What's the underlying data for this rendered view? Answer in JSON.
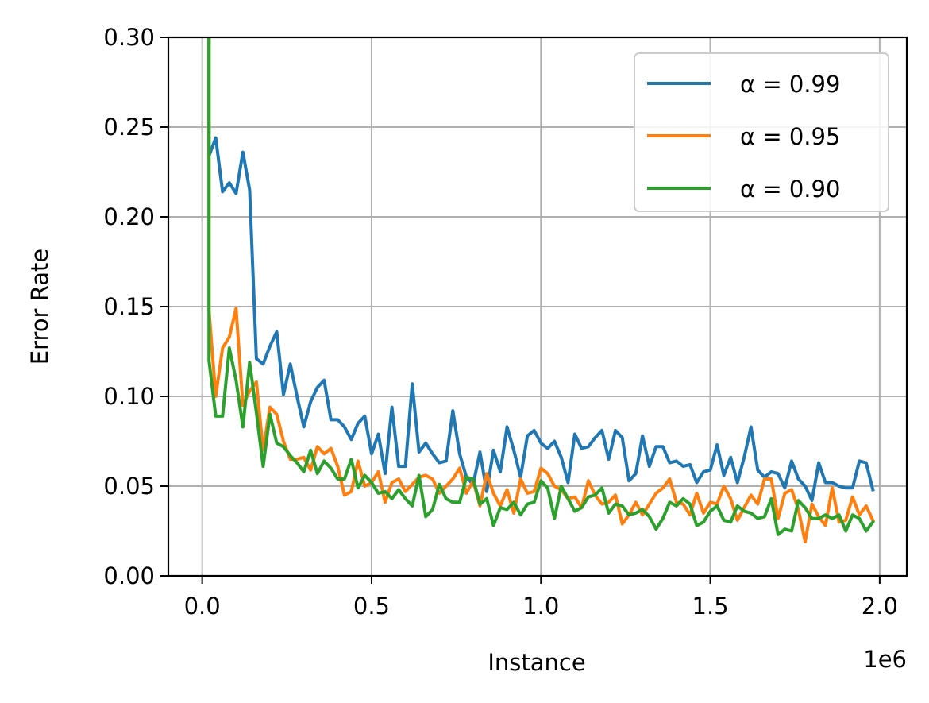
{
  "chart_data": {
    "type": "line",
    "xlabel": "Instance",
    "ylabel": "Error Rate",
    "x_offset_label": "1e6",
    "xlim": [
      -0.1,
      2.08
    ],
    "ylim": [
      0,
      0.3
    ],
    "xticks": [
      0.0,
      0.5,
      1.0,
      1.5,
      2.0
    ],
    "xtick_labels": [
      "0.0",
      "0.5",
      "1.0",
      "1.5",
      "2.0"
    ],
    "yticks": [
      0.0,
      0.05,
      0.1,
      0.15,
      0.2,
      0.25,
      0.3
    ],
    "ytick_labels": [
      "0.00",
      "0.05",
      "0.10",
      "0.15",
      "0.20",
      "0.25",
      "0.30"
    ],
    "grid": true,
    "legend_position": "top-right",
    "x": [
      0.02,
      0.04,
      0.06,
      0.08,
      0.1,
      0.12,
      0.14,
      0.16,
      0.18,
      0.2,
      0.22,
      0.24,
      0.26,
      0.28,
      0.3,
      0.32,
      0.34,
      0.36,
      0.38,
      0.4,
      0.42,
      0.44,
      0.46,
      0.48,
      0.5,
      0.52,
      0.54,
      0.56,
      0.58,
      0.6,
      0.62,
      0.64,
      0.66,
      0.68,
      0.7,
      0.72,
      0.74,
      0.76,
      0.78,
      0.8,
      0.82,
      0.84,
      0.86,
      0.88,
      0.9,
      0.92,
      0.94,
      0.96,
      0.98,
      1.0,
      1.02,
      1.04,
      1.06,
      1.08,
      1.1,
      1.12,
      1.14,
      1.16,
      1.18,
      1.2,
      1.22,
      1.24,
      1.26,
      1.28,
      1.3,
      1.32,
      1.34,
      1.36,
      1.38,
      1.4,
      1.42,
      1.44,
      1.46,
      1.48,
      1.5,
      1.52,
      1.54,
      1.56,
      1.58,
      1.6,
      1.62,
      1.64,
      1.66,
      1.68,
      1.7,
      1.72,
      1.74,
      1.76,
      1.78,
      1.8,
      1.82,
      1.84,
      1.86,
      1.88,
      1.9,
      1.92,
      1.94,
      1.96,
      1.98
    ],
    "series": [
      {
        "name": "α = 0.99",
        "color": "#1f77b4",
        "values": [
          0.234,
          0.244,
          0.214,
          0.219,
          0.213,
          0.236,
          0.215,
          0.121,
          0.118,
          0.128,
          0.136,
          0.101,
          0.118,
          0.1,
          0.083,
          0.097,
          0.105,
          0.109,
          0.087,
          0.087,
          0.083,
          0.076,
          0.085,
          0.089,
          0.068,
          0.079,
          0.057,
          0.094,
          0.061,
          0.061,
          0.107,
          0.069,
          0.074,
          0.068,
          0.063,
          0.064,
          0.092,
          0.068,
          0.055,
          0.051,
          0.069,
          0.047,
          0.07,
          0.058,
          0.083,
          0.07,
          0.055,
          0.078,
          0.081,
          0.074,
          0.071,
          0.075,
          0.066,
          0.052,
          0.079,
          0.071,
          0.072,
          0.077,
          0.081,
          0.065,
          0.081,
          0.077,
          0.053,
          0.057,
          0.078,
          0.061,
          0.072,
          0.072,
          0.063,
          0.064,
          0.061,
          0.062,
          0.052,
          0.058,
          0.059,
          0.073,
          0.056,
          0.066,
          0.052,
          0.066,
          0.083,
          0.059,
          0.055,
          0.058,
          0.057,
          0.049,
          0.064,
          0.054,
          0.05,
          0.042,
          0.063,
          0.052,
          0.052,
          0.05,
          0.049,
          0.049,
          0.064,
          0.063,
          0.048
        ]
      },
      {
        "name": "α = 0.95",
        "color": "#ff7f0e",
        "values": [
          0.148,
          0.1,
          0.127,
          0.133,
          0.149,
          0.095,
          0.103,
          0.108,
          0.07,
          0.094,
          0.09,
          0.075,
          0.065,
          0.065,
          0.066,
          0.059,
          0.072,
          0.068,
          0.071,
          0.061,
          0.045,
          0.047,
          0.064,
          0.05,
          0.052,
          0.058,
          0.041,
          0.052,
          0.054,
          0.047,
          0.051,
          0.055,
          0.056,
          0.054,
          0.046,
          0.05,
          0.054,
          0.06,
          0.046,
          0.053,
          0.039,
          0.057,
          0.046,
          0.039,
          0.048,
          0.035,
          0.054,
          0.046,
          0.047,
          0.06,
          0.057,
          0.05,
          0.048,
          0.043,
          0.044,
          0.038,
          0.053,
          0.045,
          0.04,
          0.041,
          0.045,
          0.029,
          0.034,
          0.041,
          0.034,
          0.04,
          0.046,
          0.049,
          0.054,
          0.041,
          0.04,
          0.034,
          0.046,
          0.035,
          0.041,
          0.04,
          0.05,
          0.043,
          0.031,
          0.038,
          0.045,
          0.04,
          0.054,
          0.054,
          0.032,
          0.046,
          0.048,
          0.037,
          0.019,
          0.04,
          0.033,
          0.028,
          0.049,
          0.03,
          0.031,
          0.044,
          0.034,
          0.039,
          0.031
        ]
      },
      {
        "name": "α = 0.90",
        "color": "#2ca02c",
        "values": [
          0.12,
          0.089,
          0.089,
          0.127,
          0.109,
          0.083,
          0.119,
          0.091,
          0.061,
          0.09,
          0.074,
          0.072,
          0.067,
          0.063,
          0.058,
          0.07,
          0.057,
          0.064,
          0.06,
          0.054,
          0.054,
          0.065,
          0.049,
          0.056,
          0.052,
          0.046,
          0.047,
          0.043,
          0.048,
          0.043,
          0.039,
          0.056,
          0.033,
          0.037,
          0.051,
          0.043,
          0.041,
          0.041,
          0.055,
          0.054,
          0.04,
          0.043,
          0.028,
          0.038,
          0.037,
          0.041,
          0.034,
          0.04,
          0.041,
          0.053,
          0.049,
          0.032,
          0.05,
          0.043,
          0.036,
          0.038,
          0.044,
          0.045,
          0.049,
          0.035,
          0.04,
          0.039,
          0.034,
          0.035,
          0.037,
          0.033,
          0.026,
          0.032,
          0.041,
          0.039,
          0.043,
          0.04,
          0.028,
          0.03,
          0.036,
          0.039,
          0.031,
          0.03,
          0.039,
          0.036,
          0.035,
          0.032,
          0.033,
          0.043,
          0.023,
          0.026,
          0.025,
          0.042,
          0.038,
          0.032,
          0.032,
          0.034,
          0.032,
          0.034,
          0.025,
          0.034,
          0.032,
          0.025,
          0.03
        ]
      }
    ]
  }
}
